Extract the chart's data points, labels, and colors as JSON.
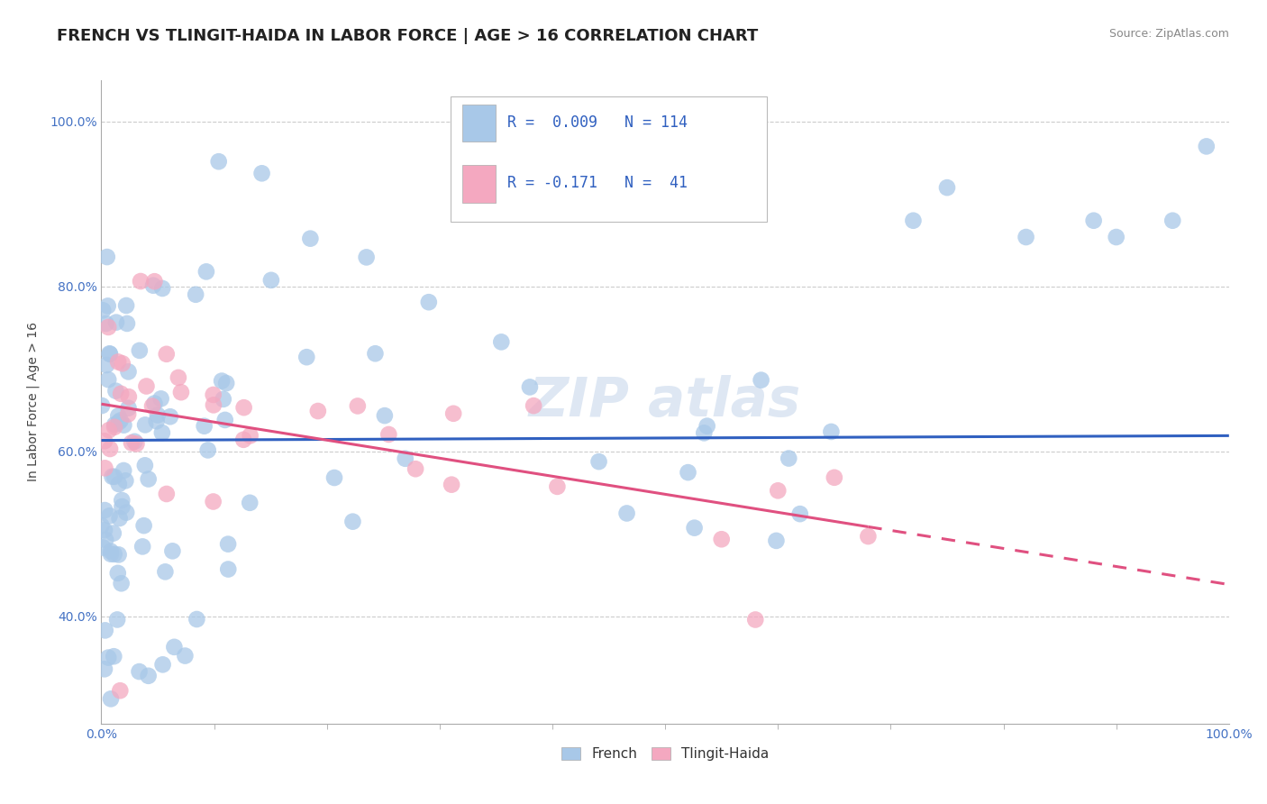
{
  "title": "FRENCH VS TLINGIT-HAIDA IN LABOR FORCE | AGE > 16 CORRELATION CHART",
  "source_text": "Source: ZipAtlas.com",
  "ylabel": "In Labor Force | Age > 16",
  "xlim": [
    0.0,
    1.0
  ],
  "ylim": [
    0.27,
    1.05
  ],
  "xtick_labels_edge": [
    "0.0%",
    "100.0%"
  ],
  "xtick_values_edge": [
    0.0,
    1.0
  ],
  "xtick_minor_values": [
    0.1,
    0.2,
    0.3,
    0.4,
    0.5,
    0.6,
    0.7,
    0.8,
    0.9
  ],
  "ytick_labels": [
    "40.0%",
    "60.0%",
    "80.0%",
    "100.0%"
  ],
  "ytick_values": [
    0.4,
    0.6,
    0.8,
    1.0
  ],
  "french_R": 0.009,
  "french_N": 114,
  "tlingit_R": -0.171,
  "tlingit_N": 41,
  "french_color": "#a8c8e8",
  "tlingit_color": "#f4a8c0",
  "french_line_color": "#3060c0",
  "tlingit_line_color": "#e05080",
  "background_color": "#ffffff",
  "grid_color": "#cccccc",
  "title_color": "#222222",
  "title_fontsize": 13,
  "axis_label_fontsize": 10,
  "tick_fontsize": 10,
  "tick_color": "#4472c4",
  "source_fontsize": 9
}
